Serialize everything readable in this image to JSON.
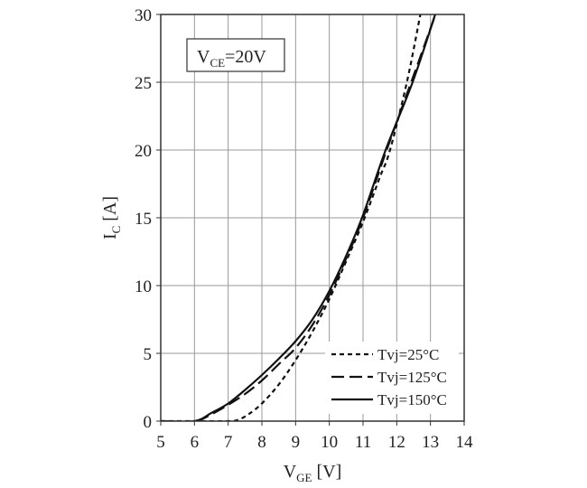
{
  "chart_data": {
    "type": "line",
    "title": "",
    "annotation": {
      "main": "V",
      "sub": "CE",
      "rest": "=20V"
    },
    "xlabel": {
      "main": "V",
      "sub": "GE",
      "rest": " [V]"
    },
    "ylabel": {
      "main": "I",
      "sub": "C",
      "rest": " [A]"
    },
    "xlim": [
      5,
      14
    ],
    "ylim": [
      0,
      30
    ],
    "xticks": [
      "5",
      "6",
      "7",
      "8",
      "9",
      "10",
      "11",
      "12",
      "13",
      "14"
    ],
    "yticks": [
      "0",
      "5",
      "10",
      "15",
      "20",
      "25",
      "30"
    ],
    "grid": true,
    "legend_position": "bottom-right",
    "series": [
      {
        "name": "Tvj=25°C",
        "style": "dotted",
        "x": [
          5,
          6,
          7,
          7.3,
          7.6,
          8,
          8.5,
          9,
          9.5,
          10,
          10.5,
          11,
          11.5,
          11.8,
          12.3,
          12.7
        ],
        "y": [
          0,
          0,
          0,
          0.1,
          0.5,
          1.3,
          2.7,
          4.5,
          6.6,
          9.0,
          11.8,
          14.7,
          18.0,
          20,
          25,
          30
        ]
      },
      {
        "name": "Tvj=125°C",
        "style": "dashed",
        "x": [
          5,
          6,
          6.5,
          7,
          7.5,
          8,
          8.5,
          9,
          9.5,
          10,
          10.5,
          11,
          11.7,
          12.5,
          13.15
        ],
        "y": [
          0,
          0,
          0.5,
          1.2,
          2.0,
          3.0,
          4.2,
          5.4,
          7.1,
          9.3,
          12.0,
          15.0,
          20,
          25.5,
          30
        ]
      },
      {
        "name": "Tvj=150°C",
        "style": "solid",
        "x": [
          5,
          6,
          6.5,
          7,
          7.5,
          8,
          8.5,
          9,
          9.5,
          10,
          10.5,
          11,
          11.67,
          12.47,
          13.14
        ],
        "y": [
          0,
          0,
          0.6,
          1.3,
          2.3,
          3.4,
          4.6,
          5.9,
          7.5,
          9.6,
          12.2,
          15.2,
          20,
          25,
          30
        ]
      }
    ]
  }
}
